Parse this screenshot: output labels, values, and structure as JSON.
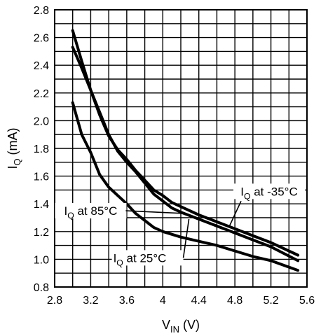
{
  "chart_data": {
    "type": "line",
    "xlabel": {
      "main": "V",
      "sub": "IN",
      "tail": " (V)"
    },
    "ylabel": {
      "main": "I",
      "sub": "Q",
      "tail": " (mA)"
    },
    "xlim": [
      2.8,
      5.6
    ],
    "ylim": [
      0.8,
      2.8
    ],
    "x_tick_labels": [
      "2.8",
      "3.2",
      "3.6",
      "4",
      "4.4",
      "4.8",
      "5.2",
      "5.6"
    ],
    "y_tick_labels": [
      "0.8",
      "1.0",
      "1.2",
      "1.4",
      "1.6",
      "1.8",
      "2.0",
      "2.2",
      "2.4",
      "2.6",
      "2.8"
    ],
    "grid": true,
    "series": [
      {
        "name": "IQ at -35°C",
        "label": {
          "main": "I",
          "sub": "Q",
          "tail": " at -35°C"
        },
        "points": [
          [
            3.0,
            2.65
          ],
          [
            3.1,
            2.43
          ],
          [
            3.2,
            2.22
          ],
          [
            3.3,
            2.04
          ],
          [
            3.4,
            1.89
          ],
          [
            3.5,
            1.79
          ],
          [
            3.6,
            1.72
          ],
          [
            3.7,
            1.64
          ],
          [
            3.8,
            1.57
          ],
          [
            3.9,
            1.5
          ],
          [
            4.0,
            1.46
          ],
          [
            4.1,
            1.41
          ],
          [
            4.2,
            1.38
          ],
          [
            4.4,
            1.32
          ],
          [
            4.6,
            1.27
          ],
          [
            4.8,
            1.22
          ],
          [
            5.0,
            1.17
          ],
          [
            5.2,
            1.12
          ],
          [
            5.5,
            1.03
          ]
        ]
      },
      {
        "name": "IQ at 25°C",
        "label": {
          "main": "I",
          "sub": "Q",
          "tail": " at 25°C"
        },
        "points": [
          [
            3.0,
            2.53
          ],
          [
            3.1,
            2.38
          ],
          [
            3.2,
            2.22
          ],
          [
            3.3,
            2.06
          ],
          [
            3.4,
            1.9
          ],
          [
            3.5,
            1.78
          ],
          [
            3.6,
            1.7
          ],
          [
            3.7,
            1.63
          ],
          [
            3.8,
            1.55
          ],
          [
            3.9,
            1.47
          ],
          [
            4.0,
            1.42
          ],
          [
            4.1,
            1.37
          ],
          [
            4.2,
            1.34
          ],
          [
            4.4,
            1.29
          ],
          [
            4.6,
            1.24
          ],
          [
            4.8,
            1.19
          ],
          [
            5.0,
            1.14
          ],
          [
            5.2,
            1.09
          ],
          [
            5.5,
            0.99
          ]
        ]
      },
      {
        "name": "IQ at 85°C",
        "label": {
          "main": "I",
          "sub": "Q",
          "tail": " at 85°C"
        },
        "points": [
          [
            3.0,
            2.13
          ],
          [
            3.1,
            1.9
          ],
          [
            3.2,
            1.77
          ],
          [
            3.3,
            1.61
          ],
          [
            3.4,
            1.52
          ],
          [
            3.5,
            1.46
          ],
          [
            3.6,
            1.4
          ],
          [
            3.7,
            1.33
          ],
          [
            3.8,
            1.28
          ],
          [
            3.9,
            1.23
          ],
          [
            4.0,
            1.2
          ],
          [
            4.2,
            1.16
          ],
          [
            4.4,
            1.13
          ],
          [
            4.6,
            1.1
          ],
          [
            4.8,
            1.06
          ],
          [
            5.0,
            1.02
          ],
          [
            5.2,
            0.99
          ],
          [
            5.5,
            0.92
          ]
        ]
      }
    ],
    "annotations": [
      {
        "series": 0,
        "anchor": [
          4.74,
          1.24
        ],
        "text_pos": [
          5.18,
          1.46
        ],
        "text_anchor": "middle"
      },
      {
        "series": 1,
        "anchor": [
          4.29,
          1.29
        ],
        "text_pos": [
          3.45,
          0.98
        ],
        "text_anchor": "start"
      },
      {
        "series": 2,
        "anchor": [
          4.26,
          1.33
        ],
        "text_pos": [
          3.2,
          1.32
        ],
        "text_anchor": "middle"
      }
    ],
    "colors": {
      "line": "#000000",
      "grid": "#000000",
      "background": "#ffffff"
    }
  }
}
